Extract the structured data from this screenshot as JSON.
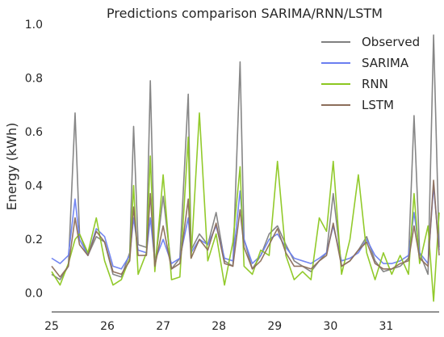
{
  "chart_data": {
    "type": "line",
    "title": "Predictions comparison SARIMA/RNN/LSTM",
    "xlabel": "",
    "ylabel": "Energy (kWh)",
    "xlim": [
      25,
      31.95
    ],
    "ylim": [
      -0.07,
      1.0
    ],
    "x_ticks": [
      25,
      26,
      27,
      28,
      29,
      30,
      31
    ],
    "x_tick_labels": [
      "25",
      "26",
      "27",
      "28",
      "29",
      "30",
      "31"
    ],
    "y_ticks": [
      0.0,
      0.2,
      0.4,
      0.6,
      0.8,
      1.0
    ],
    "y_tick_labels": [
      "0.0",
      "0.2",
      "0.4",
      "0.6",
      "0.8",
      "1.0"
    ],
    "grid": false,
    "legend_position": "top-right",
    "x": [
      25.0,
      25.15,
      25.3,
      25.42,
      25.5,
      25.65,
      25.8,
      25.95,
      26.1,
      26.25,
      26.4,
      26.47,
      26.55,
      26.7,
      26.77,
      26.85,
      27.0,
      27.15,
      27.3,
      27.45,
      27.5,
      27.65,
      27.8,
      27.95,
      28.1,
      28.25,
      28.38,
      28.45,
      28.6,
      28.75,
      28.9,
      29.05,
      29.2,
      29.35,
      29.5,
      29.65,
      29.8,
      29.93,
      30.05,
      30.2,
      30.35,
      30.5,
      30.65,
      30.8,
      30.95,
      31.1,
      31.25,
      31.4,
      31.5,
      31.6,
      31.75,
      31.85,
      31.95
    ],
    "series": [
      {
        "name": "Observed",
        "color": "#808080",
        "values": [
          0.07,
          0.05,
          0.1,
          0.67,
          0.22,
          0.14,
          0.21,
          0.19,
          0.07,
          0.06,
          0.15,
          0.62,
          0.18,
          0.17,
          0.79,
          0.1,
          0.36,
          0.09,
          0.13,
          0.74,
          0.16,
          0.22,
          0.18,
          0.3,
          0.12,
          0.1,
          0.86,
          0.2,
          0.09,
          0.14,
          0.22,
          0.25,
          0.18,
          0.12,
          0.1,
          0.08,
          0.12,
          0.15,
          0.37,
          0.1,
          0.12,
          0.16,
          0.21,
          0.12,
          0.08,
          0.09,
          0.1,
          0.13,
          0.66,
          0.15,
          0.07,
          0.96,
          0.17
        ]
      },
      {
        "name": "SARIMA",
        "color": "#6b7ff0",
        "values": [
          0.13,
          0.11,
          0.14,
          0.35,
          0.2,
          0.14,
          0.24,
          0.21,
          0.1,
          0.09,
          0.14,
          0.28,
          0.16,
          0.15,
          0.28,
          0.12,
          0.2,
          0.11,
          0.13,
          0.28,
          0.15,
          0.2,
          0.18,
          0.25,
          0.13,
          0.12,
          0.38,
          0.2,
          0.11,
          0.14,
          0.2,
          0.22,
          0.17,
          0.13,
          0.12,
          0.11,
          0.13,
          0.15,
          0.25,
          0.12,
          0.13,
          0.15,
          0.2,
          0.14,
          0.11,
          0.11,
          0.12,
          0.14,
          0.3,
          0.15,
          0.11,
          0.4,
          0.16
        ]
      },
      {
        "name": "RNN",
        "color": "#8cc720",
        "values": [
          0.08,
          0.03,
          0.11,
          0.2,
          0.22,
          0.15,
          0.28,
          0.12,
          0.03,
          0.05,
          0.13,
          0.4,
          0.07,
          0.15,
          0.51,
          0.08,
          0.44,
          0.05,
          0.06,
          0.58,
          0.13,
          0.67,
          0.12,
          0.22,
          0.03,
          0.19,
          0.47,
          0.1,
          0.07,
          0.16,
          0.14,
          0.49,
          0.14,
          0.05,
          0.08,
          0.05,
          0.28,
          0.23,
          0.49,
          0.07,
          0.2,
          0.44,
          0.15,
          0.05,
          0.15,
          0.07,
          0.14,
          0.07,
          0.37,
          0.11,
          0.25,
          -0.03,
          0.3
        ]
      },
      {
        "name": "LSTM",
        "color": "#8c6e5a",
        "values": [
          0.1,
          0.06,
          0.1,
          0.28,
          0.18,
          0.14,
          0.23,
          0.19,
          0.08,
          0.07,
          0.12,
          0.32,
          0.14,
          0.14,
          0.37,
          0.1,
          0.25,
          0.09,
          0.11,
          0.35,
          0.13,
          0.2,
          0.16,
          0.26,
          0.11,
          0.1,
          0.31,
          0.17,
          0.09,
          0.12,
          0.18,
          0.24,
          0.15,
          0.1,
          0.1,
          0.09,
          0.12,
          0.14,
          0.26,
          0.1,
          0.12,
          0.16,
          0.19,
          0.11,
          0.09,
          0.09,
          0.11,
          0.12,
          0.25,
          0.13,
          0.1,
          0.42,
          0.14
        ]
      }
    ]
  }
}
